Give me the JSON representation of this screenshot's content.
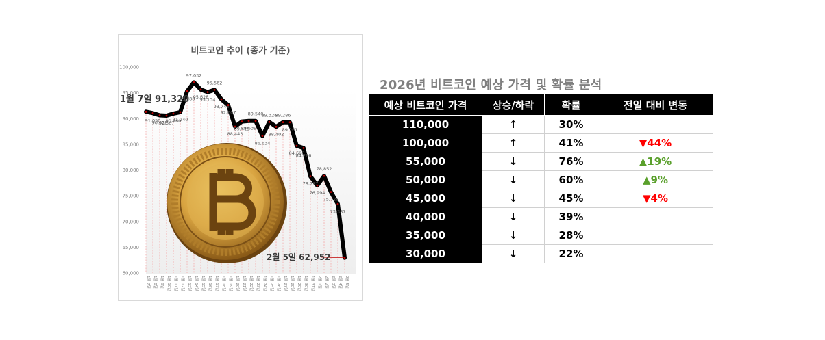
{
  "chart": {
    "title": "비트코인 추이 (종가 기준)",
    "start_callout": "1월 7일 91,320",
    "end_callout": "2월 5일 62,952"
  },
  "chart_data": {
    "type": "line",
    "title": "비트코인 추이 (종가 기준)",
    "ylim": [
      60000,
      100000
    ],
    "yticks": [
      60000,
      65000,
      70000,
      75000,
      80000,
      85000,
      90000,
      95000,
      100000
    ],
    "ytick_labels": [
      "60,000",
      "65,000",
      "70,000",
      "75,000",
      "80,000",
      "85,000",
      "90,000",
      "95,000",
      "100,000"
    ],
    "categories": [
      "1월 7일",
      "1월 8일",
      "1월 9일",
      "1월 10일",
      "1월 11일",
      "1월 12일",
      "1월 13일",
      "1월 14일",
      "1월 15일",
      "1월 16일",
      "1월 17일",
      "1월 18일",
      "1월 19일",
      "1월 20일",
      "1월 21일",
      "1월 22일",
      "1월 23일",
      "1월 24일",
      "1월 25일",
      "1월 26일",
      "1월 27일",
      "1월 28일",
      "1월 29일",
      "1월 30일",
      "1월 31일",
      "2월 1일",
      "2월 2일",
      "2월 3일",
      "2월 4일",
      "2월 5일"
    ],
    "series": [
      {
        "name": "종가",
        "values": [
          91320,
          91050,
          90628,
          90567,
          90960,
          91240,
          95288,
          97032,
          95628,
          95134,
          95562,
          93746,
          92607,
          88443,
          89415,
          89539,
          89540,
          86634,
          89326,
          88402,
          89286,
          89261,
          84696,
          84266,
          78777,
          76994,
          78852,
          75728,
          73387,
          62952
        ],
        "labels": [
          "",
          "91,050",
          "90,628",
          "90,567",
          "90,960",
          "91,240",
          "95,288",
          "97,032",
          "95,628",
          "95,134",
          "95,562",
          "93,746",
          "92,607",
          "88,443",
          "89,415",
          "89,539",
          "89,540",
          "86,634",
          "89,326",
          "88,402",
          "89,286",
          "89,261",
          "84,696",
          "84,266",
          "78,777",
          "76,994",
          "78,852",
          "75,728",
          "73,387",
          ""
        ]
      }
    ],
    "line_color": "#000000",
    "marker_color": "#c00000",
    "gridline_color": "#f4a6a6"
  },
  "forecast": {
    "title": "2026년 비트코인 예상 가격 및 확률 분석",
    "headers": [
      "예상 비트코인 가격",
      "상승/하락",
      "확률",
      "전일 대비 변동"
    ],
    "rows": [
      {
        "price": "110,000",
        "direction": "↑",
        "probability": "30%",
        "change": "",
        "change_type": "none"
      },
      {
        "price": "100,000",
        "direction": "↑",
        "probability": "41%",
        "change": "▼44%",
        "change_type": "down"
      },
      {
        "price": "55,000",
        "direction": "↓",
        "probability": "76%",
        "change": "▲19%",
        "change_type": "up"
      },
      {
        "price": "50,000",
        "direction": "↓",
        "probability": "60%",
        "change": "▲9%",
        "change_type": "up"
      },
      {
        "price": "45,000",
        "direction": "↓",
        "probability": "45%",
        "change": "▼4%",
        "change_type": "down"
      },
      {
        "price": "40,000",
        "direction": "↓",
        "probability": "39%",
        "change": "",
        "change_type": "none"
      },
      {
        "price": "35,000",
        "direction": "↓",
        "probability": "28%",
        "change": "",
        "change_type": "none"
      },
      {
        "price": "30,000",
        "direction": "↓",
        "probability": "22%",
        "change": "",
        "change_type": "none"
      }
    ],
    "colors": {
      "down": "#ff0000",
      "up": "#5aa02c"
    }
  }
}
